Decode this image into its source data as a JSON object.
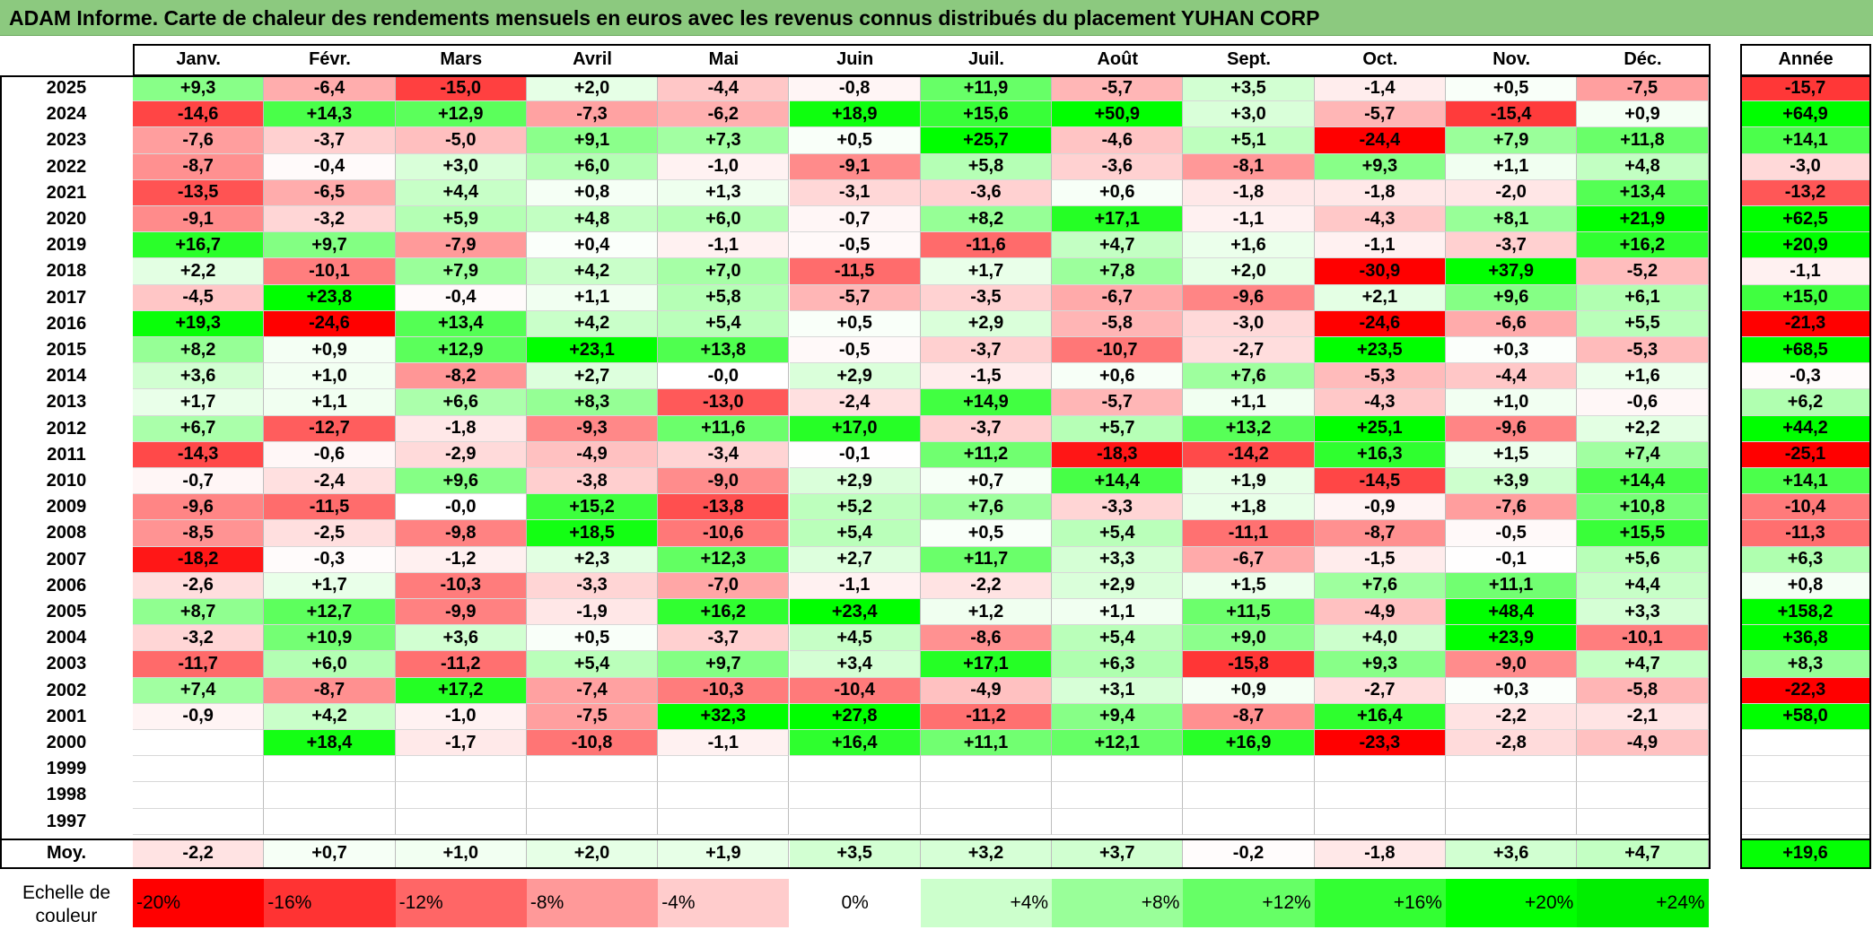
{
  "title": "ADAM Informe. Carte de chaleur des rendements mensuels en euros avec les revenus connus distribués du placement YUHAN CORP",
  "chart_data": {
    "type": "heatmap",
    "title": "ADAM Informe. Carte de chaleur des rendements mensuels en euros avec les revenus connus distribués du placement YUHAN CORP",
    "months": [
      "Janv.",
      "Févr.",
      "Mars",
      "Avril",
      "Mai",
      "Juin",
      "Juil.",
      "Août",
      "Sept.",
      "Oct.",
      "Nov.",
      "Déc."
    ],
    "year_header": "Année",
    "rows": [
      {
        "year": "2025",
        "values": [
          "+9,3",
          "-6,4",
          "-15,0",
          "+2,0",
          "-4,4",
          "-0,8",
          "+11,9",
          "-5,7",
          "+3,5",
          "-1,4",
          "+0,5",
          "-7,5"
        ],
        "annual": "-15,7"
      },
      {
        "year": "2024",
        "values": [
          "-14,6",
          "+14,3",
          "+12,9",
          "-7,3",
          "-6,2",
          "+18,9",
          "+15,6",
          "+50,9",
          "+3,0",
          "-5,7",
          "-15,4",
          "+0,9"
        ],
        "annual": "+64,9"
      },
      {
        "year": "2023",
        "values": [
          "-7,6",
          "-3,7",
          "-5,0",
          "+9,1",
          "+7,3",
          "+0,5",
          "+25,7",
          "-4,6",
          "+5,1",
          "-24,4",
          "+7,9",
          "+11,8"
        ],
        "annual": "+14,1"
      },
      {
        "year": "2022",
        "values": [
          "-8,7",
          "-0,4",
          "+3,0",
          "+6,0",
          "-1,0",
          "-9,1",
          "+5,8",
          "-3,6",
          "-8,1",
          "+9,3",
          "+1,1",
          "+4,8"
        ],
        "annual": "-3,0"
      },
      {
        "year": "2021",
        "values": [
          "-13,5",
          "-6,5",
          "+4,4",
          "+0,8",
          "+1,3",
          "-3,1",
          "-3,6",
          "+0,6",
          "-1,8",
          "-1,8",
          "-2,0",
          "+13,4"
        ],
        "annual": "-13,2"
      },
      {
        "year": "2020",
        "values": [
          "-9,1",
          "-3,2",
          "+5,9",
          "+4,8",
          "+6,0",
          "-0,7",
          "+8,2",
          "+17,1",
          "-1,1",
          "-4,3",
          "+8,1",
          "+21,9"
        ],
        "annual": "+62,5"
      },
      {
        "year": "2019",
        "values": [
          "+16,7",
          "+9,7",
          "-7,9",
          "+0,4",
          "-1,1",
          "-0,5",
          "-11,6",
          "+4,7",
          "+1,6",
          "-1,1",
          "-3,7",
          "+16,2"
        ],
        "annual": "+20,9"
      },
      {
        "year": "2018",
        "values": [
          "+2,2",
          "-10,1",
          "+7,9",
          "+4,2",
          "+7,0",
          "-11,5",
          "+1,7",
          "+7,8",
          "+2,0",
          "-30,9",
          "+37,9",
          "-5,2"
        ],
        "annual": "-1,1"
      },
      {
        "year": "2017",
        "values": [
          "-4,5",
          "+23,8",
          "-0,4",
          "+1,1",
          "+5,8",
          "-5,7",
          "-3,5",
          "-6,7",
          "-9,6",
          "+2,1",
          "+9,6",
          "+6,1"
        ],
        "annual": "+15,0"
      },
      {
        "year": "2016",
        "values": [
          "+19,3",
          "-24,6",
          "+13,4",
          "+4,2",
          "+5,4",
          "+0,5",
          "+2,9",
          "-5,8",
          "-3,0",
          "-24,6",
          "-6,6",
          "+5,5"
        ],
        "annual": "-21,3"
      },
      {
        "year": "2015",
        "values": [
          "+8,2",
          "+0,9",
          "+12,9",
          "+23,1",
          "+13,8",
          "-0,5",
          "-3,7",
          "-10,7",
          "-2,7",
          "+23,5",
          "+0,3",
          "-5,3"
        ],
        "annual": "+68,5"
      },
      {
        "year": "2014",
        "values": [
          "+3,6",
          "+1,0",
          "-8,2",
          "+2,7",
          "-0,0",
          "+2,9",
          "-1,5",
          "+0,6",
          "+7,6",
          "-5,3",
          "-4,4",
          "+1,6"
        ],
        "annual": "-0,3"
      },
      {
        "year": "2013",
        "values": [
          "+1,7",
          "+1,1",
          "+6,6",
          "+8,3",
          "-13,0",
          "-2,4",
          "+14,9",
          "-5,7",
          "+1,1",
          "-4,3",
          "+1,0",
          "-0,6"
        ],
        "annual": "+6,2"
      },
      {
        "year": "2012",
        "values": [
          "+6,7",
          "-12,7",
          "-1,8",
          "-9,3",
          "+11,6",
          "+17,0",
          "-3,7",
          "+5,7",
          "+13,2",
          "+25,1",
          "-9,6",
          "+2,2"
        ],
        "annual": "+44,2"
      },
      {
        "year": "2011",
        "values": [
          "-14,3",
          "-0,6",
          "-2,9",
          "-4,9",
          "-3,4",
          "-0,1",
          "+11,2",
          "-18,3",
          "-14,2",
          "+16,3",
          "+1,5",
          "+7,4"
        ],
        "annual": "-25,1"
      },
      {
        "year": "2010",
        "values": [
          "-0,7",
          "-2,4",
          "+9,6",
          "-3,8",
          "-9,0",
          "+2,9",
          "+0,7",
          "+14,4",
          "+1,9",
          "-14,5",
          "+3,9",
          "+14,4"
        ],
        "annual": "+14,1"
      },
      {
        "year": "2009",
        "values": [
          "-9,6",
          "-11,5",
          "-0,0",
          "+15,2",
          "-13,8",
          "+5,2",
          "+7,6",
          "-3,3",
          "+1,8",
          "-0,9",
          "-7,6",
          "+10,8"
        ],
        "annual": "-10,4"
      },
      {
        "year": "2008",
        "values": [
          "-8,5",
          "-2,5",
          "-9,8",
          "+18,5",
          "-10,6",
          "+5,4",
          "+0,5",
          "+5,4",
          "-11,1",
          "-8,7",
          "-0,5",
          "+15,5"
        ],
        "annual": "-11,3"
      },
      {
        "year": "2007",
        "values": [
          "-18,2",
          "-0,3",
          "-1,2",
          "+2,3",
          "+12,3",
          "+2,7",
          "+11,7",
          "+3,3",
          "-6,7",
          "-1,5",
          "-0,1",
          "+5,6"
        ],
        "annual": "+6,3"
      },
      {
        "year": "2006",
        "values": [
          "-2,6",
          "+1,7",
          "-10,3",
          "-3,3",
          "-7,0",
          "-1,1",
          "-2,2",
          "+2,9",
          "+1,5",
          "+7,6",
          "+11,1",
          "+4,4"
        ],
        "annual": "+0,8"
      },
      {
        "year": "2005",
        "values": [
          "+8,7",
          "+12,7",
          "-9,9",
          "-1,9",
          "+16,2",
          "+23,4",
          "+1,2",
          "+1,1",
          "+11,5",
          "-4,9",
          "+48,4",
          "+3,3"
        ],
        "annual": "+158,2"
      },
      {
        "year": "2004",
        "values": [
          "-3,2",
          "+10,9",
          "+3,6",
          "+0,5",
          "-3,7",
          "+4,5",
          "-8,6",
          "+5,4",
          "+9,0",
          "+4,0",
          "+23,9",
          "-10,1"
        ],
        "annual": "+36,8"
      },
      {
        "year": "2003",
        "values": [
          "-11,7",
          "+6,0",
          "-11,2",
          "+5,4",
          "+9,7",
          "+3,4",
          "+17,1",
          "+6,3",
          "-15,8",
          "+9,3",
          "-9,0",
          "+4,7"
        ],
        "annual": "+8,3"
      },
      {
        "year": "2002",
        "values": [
          "+7,4",
          "-8,7",
          "+17,2",
          "-7,4",
          "-10,3",
          "-10,4",
          "-4,9",
          "+3,1",
          "+0,9",
          "-2,7",
          "+0,3",
          "-5,8"
        ],
        "annual": "-22,3"
      },
      {
        "year": "2001",
        "values": [
          "-0,9",
          "+4,2",
          "-1,0",
          "-7,5",
          "+32,3",
          "+27,8",
          "-11,2",
          "+9,4",
          "-8,7",
          "+16,4",
          "-2,2",
          "-2,1"
        ],
        "annual": "+58,0"
      },
      {
        "year": "2000",
        "values": [
          "",
          "+18,4",
          "-1,7",
          "-10,8",
          "-1,1",
          "+16,4",
          "+11,1",
          "+12,1",
          "+16,9",
          "-23,3",
          "-2,8",
          "-4,9"
        ],
        "annual": ""
      },
      {
        "year": "1999",
        "values": [
          "",
          "",
          "",
          "",
          "",
          "",
          "",
          "",
          "",
          "",
          "",
          ""
        ],
        "annual": ""
      },
      {
        "year": "1998",
        "values": [
          "",
          "",
          "",
          "",
          "",
          "",
          "",
          "",
          "",
          "",
          "",
          ""
        ],
        "annual": ""
      },
      {
        "year": "1997",
        "values": [
          "",
          "",
          "",
          "",
          "",
          "",
          "",
          "",
          "",
          "",
          "",
          ""
        ],
        "annual": ""
      }
    ],
    "average": {
      "label": "Moy.",
      "values": [
        "-2,2",
        "+0,7",
        "+1,0",
        "+2,0",
        "+1,9",
        "+3,5",
        "+3,2",
        "+3,7",
        "-0,2",
        "-1,8",
        "+3,6",
        "+4,7"
      ],
      "annual": "+19,6"
    },
    "color_scale": {
      "label_line1": "Echelle de",
      "label_line2": "couleur",
      "stops": [
        {
          "label": "-20%",
          "color": "#ff0000"
        },
        {
          "label": "-16%",
          "color": "#ff3333"
        },
        {
          "label": "-12%",
          "color": "#ff6666"
        },
        {
          "label": "-8%",
          "color": "#ff9999"
        },
        {
          "label": "-4%",
          "color": "#ffcccc"
        },
        {
          "label": "0%",
          "color": "#ffffff"
        },
        {
          "label": "+4%",
          "color": "#ccffcc"
        },
        {
          "label": "+8%",
          "color": "#99ff99"
        },
        {
          "label": "+12%",
          "color": "#66ff66"
        },
        {
          "label": "+16%",
          "color": "#33ff33"
        },
        {
          "label": "+20%",
          "color": "#00ff00"
        },
        {
          "label": "+24%",
          "color": "#00ee00"
        }
      ]
    }
  }
}
